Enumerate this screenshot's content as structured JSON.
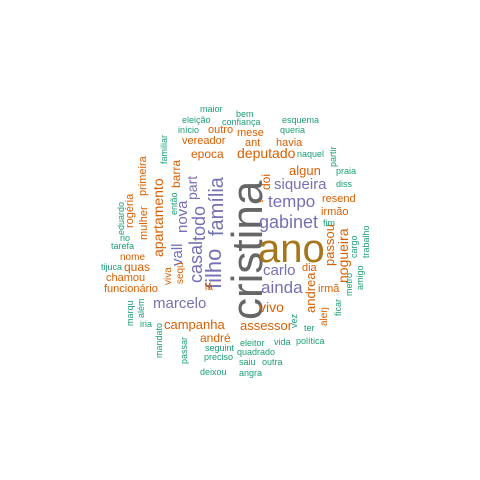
{
  "palette": {
    "green": "#1b9e77",
    "orange": "#d95f02",
    "purple": "#7570b3",
    "gray": "#666666",
    "gold": "#a6761d"
  },
  "words": {
    "cristina": "cristina",
    "ano": "ano",
    "filho": "filho",
    "família": "família",
    "casal": "casal",
    "todo": "todo",
    "gabinet": "gabinet",
    "tempo": "tempo",
    "marcelo": "marcelo",
    "ainda": "ainda",
    "carlo": "carlo",
    "siqueira": "siqueira",
    "campanha": "campanha",
    "apartamento": "apartamento",
    "assessor": "assessor",
    "deputado": "deputado",
    "epoca": "epoca",
    "nova": "nova",
    "part": "part",
    "vall": "vall",
    "vivo": "vivo",
    "andré": "andré",
    "quas": "quas",
    "passou": "passou",
    "nogueira": "nogueira",
    "andrea": "andrea",
    "algun": "algun",
    "dói": "doi",
    "barra": "barra",
    "mulher": "mulher",
    "primeira": "primeira",
    "chamou": "chamou",
    "funcionário": "funcionário",
    "nome": "nome",
    "vereador": "vereador",
    "havia": "havia",
    "ant": "ant",
    "mese": "mese",
    "outro": "outro",
    "resend": "resend",
    "irmão": "irmão",
    "irmã": "irmã",
    "dia": "dia",
    "alerj": "alerj",
    "lá": "lá",
    "viva": "viva",
    "sequ": "sequ",
    "então": "então",
    "rogéria": "rogéria",
    "eduardo": "eduardo",
    "rio": "rio",
    "tarefa": "tarefa",
    "tijuca": "tijuca",
    "marqu": "marqu",
    "além": "além",
    "iria": "iria",
    "mandato": "mandato",
    "passar": "passar",
    "seguint": "seguint",
    "preciso": "preciso",
    "quadrado": "quadrado",
    "saiu": "saiu",
    "outra": "outra",
    "eleitor": "eleitor",
    "vida": "vida",
    "política": "política",
    "deixou": "deixou",
    "angra": "angra",
    "ter": "ter",
    "vez": "vez",
    "ficar": "ficar",
    "metro": "metro",
    "amigo": "amigo",
    "cargo": "cargo",
    "trabalho": "trabalho",
    "fim": "fim",
    "diss": "diss",
    "praia": "praia",
    "partir": "partir",
    "naquel": "naquel",
    "queria": "queria",
    "esquema": "esquema",
    "confiança": "confiança",
    "bem": "bem",
    "maior": "maior",
    "eleição": "eleição",
    "início": "início",
    "familiar": "familiar",
    "ponto": "\""
  }
}
